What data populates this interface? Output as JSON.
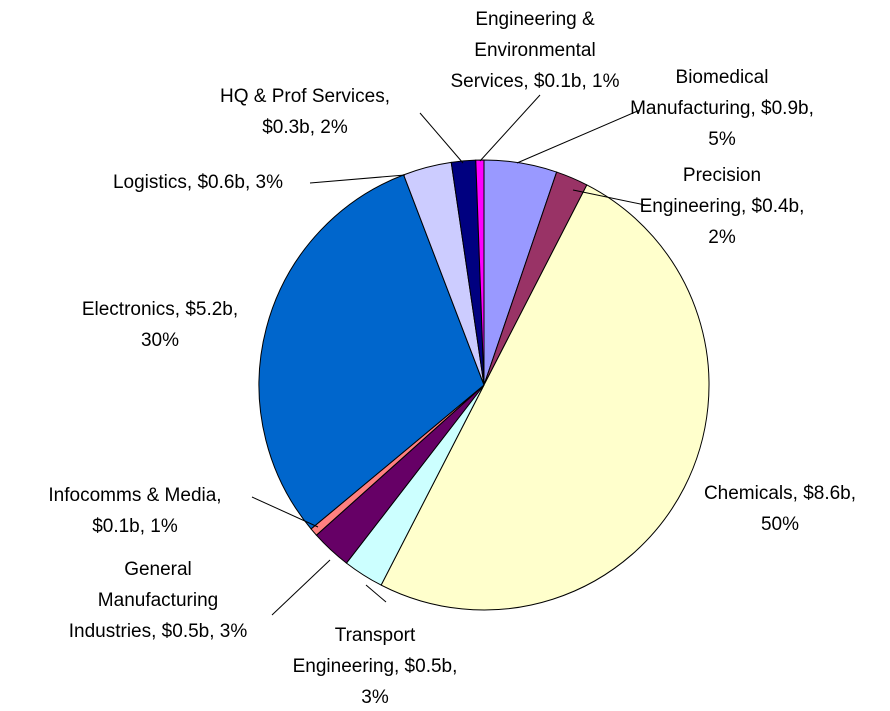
{
  "chart_data": {
    "type": "pie",
    "categories": [
      "Biomedical Manufacturing",
      "Precision Engineering",
      "Chemicals",
      "Transport Engineering",
      "General Manufacturing Industries",
      "Infocomms & Media",
      "Electronics",
      "Logistics",
      "HQ & Prof Services",
      "Engineering & Environmental Services"
    ],
    "values": [
      0.9,
      0.4,
      8.6,
      0.5,
      0.5,
      0.1,
      5.2,
      0.6,
      0.3,
      0.1
    ],
    "value_labels": [
      [
        "Biomedical",
        "Manufacturing, $0.9b,",
        "5%"
      ],
      [
        "Precision",
        "Engineering, $0.4b,",
        "2%"
      ],
      [
        "Chemicals, $8.6b,",
        "50%"
      ],
      [
        "Transport",
        "Engineering, $0.5b,",
        "3%"
      ],
      [
        "General",
        "Manufacturing",
        "Industries, $0.5b, 3%"
      ],
      [
        "Infocomms & Media,",
        "$0.1b, 1%"
      ],
      [
        "Electronics, $5.2b,",
        "30%"
      ],
      [
        "Logistics, $0.6b, 3%"
      ],
      [
        "HQ & Prof Services,",
        "$0.3b, 2%"
      ],
      [
        "Engineering &",
        "Environmental",
        "Services, $0.1b, 1%"
      ]
    ],
    "colors": [
      "#9999ff",
      "#993366",
      "#ffffcc",
      "#ccffff",
      "#660066",
      "#ff8080",
      "#0066cc",
      "#ccccff",
      "#000080",
      "#ff00ff"
    ]
  }
}
